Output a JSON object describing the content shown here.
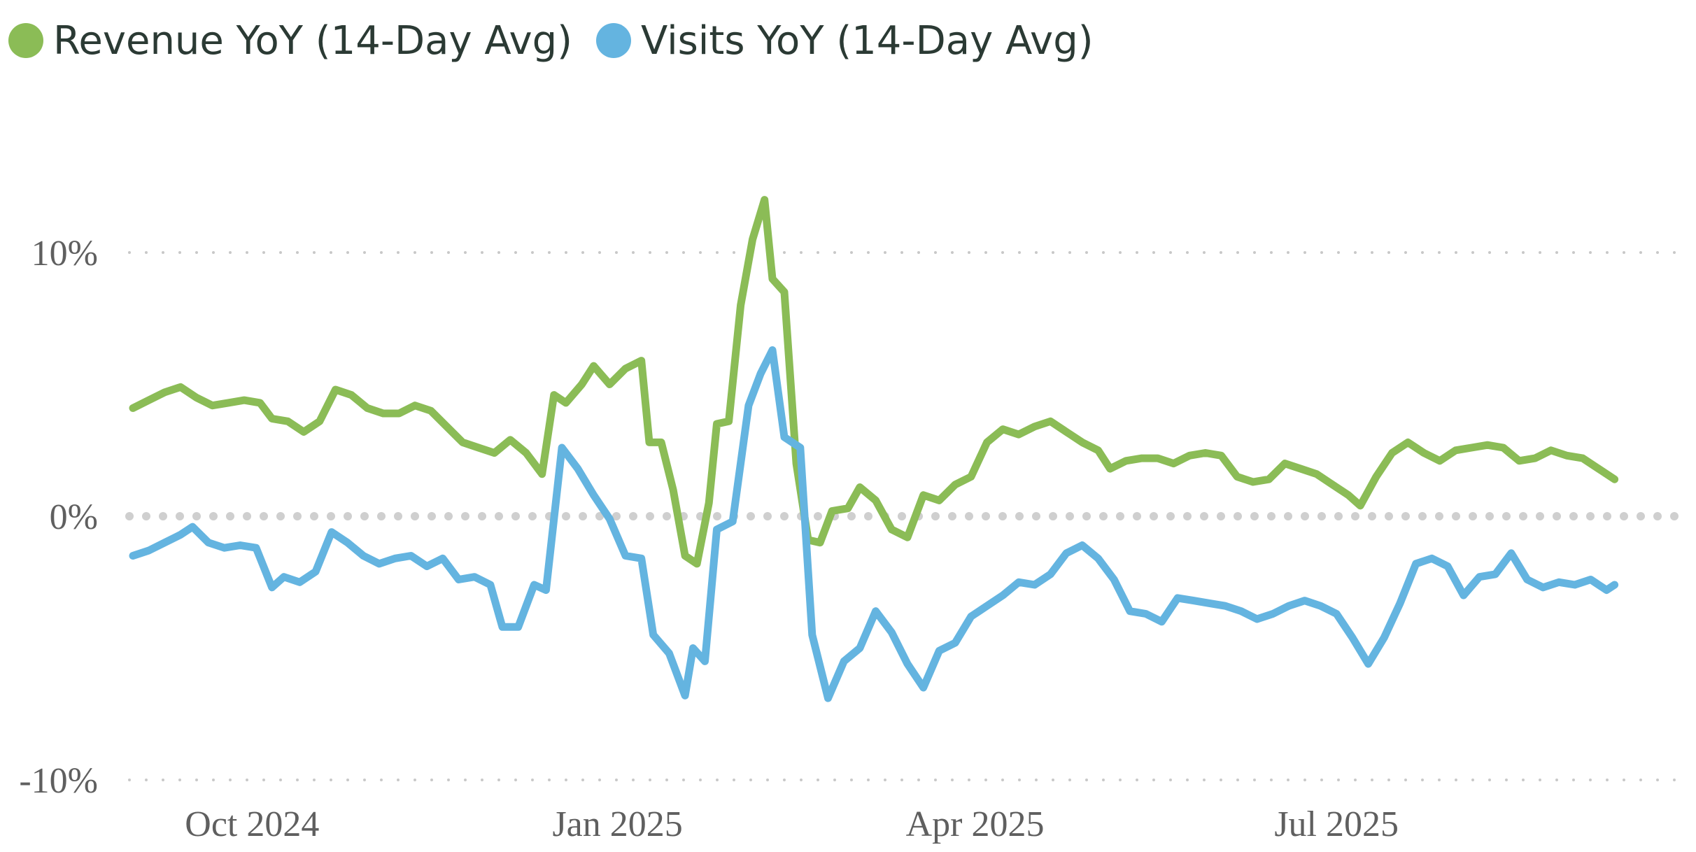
{
  "chart_data": {
    "type": "line",
    "title": "",
    "xlabel": "",
    "ylabel": "",
    "ylim": [
      -10,
      10
    ],
    "xlim": [
      "2024-09-01",
      "2025-09-20"
    ],
    "legend_position": "top-left",
    "grid": "dotted horizontal",
    "x_ticks": [
      {
        "date": "2024-10-01",
        "label": "Oct 2024"
      },
      {
        "date": "2025-01-01",
        "label": "Jan 2025"
      },
      {
        "date": "2025-04-01",
        "label": "Apr 2025"
      },
      {
        "date": "2025-07-01",
        "label": "Jul 2025"
      }
    ],
    "y_ticks": [
      {
        "value": 10,
        "label": "10%"
      },
      {
        "value": 0,
        "label": "0%"
      },
      {
        "value": -10,
        "label": "-10%"
      }
    ],
    "series": [
      {
        "name": "Revenue YoY (14-Day Avg)",
        "color": "#8bbc56",
        "points": [
          [
            "2024-09-01",
            4.1
          ],
          [
            "2024-09-05",
            4.4
          ],
          [
            "2024-09-09",
            4.7
          ],
          [
            "2024-09-13",
            4.9
          ],
          [
            "2024-09-17",
            4.5
          ],
          [
            "2024-09-21",
            4.2
          ],
          [
            "2024-09-25",
            4.3
          ],
          [
            "2024-09-29",
            4.4
          ],
          [
            "2024-10-03",
            4.3
          ],
          [
            "2024-10-06",
            3.7
          ],
          [
            "2024-10-10",
            3.6
          ],
          [
            "2024-10-14",
            3.2
          ],
          [
            "2024-10-18",
            3.6
          ],
          [
            "2024-10-22",
            4.8
          ],
          [
            "2024-10-26",
            4.6
          ],
          [
            "2024-10-30",
            4.1
          ],
          [
            "2024-11-03",
            3.9
          ],
          [
            "2024-11-07",
            3.9
          ],
          [
            "2024-11-11",
            4.2
          ],
          [
            "2024-11-15",
            4.0
          ],
          [
            "2024-11-19",
            3.4
          ],
          [
            "2024-11-23",
            2.8
          ],
          [
            "2024-11-27",
            2.6
          ],
          [
            "2024-12-01",
            2.4
          ],
          [
            "2024-12-05",
            2.9
          ],
          [
            "2024-12-09",
            2.4
          ],
          [
            "2024-12-13",
            1.6
          ],
          [
            "2024-12-16",
            4.6
          ],
          [
            "2024-12-19",
            4.3
          ],
          [
            "2024-12-23",
            5.0
          ],
          [
            "2024-12-26",
            5.7
          ],
          [
            "2024-12-30",
            5.0
          ],
          [
            "2025-01-03",
            5.6
          ],
          [
            "2025-01-07",
            5.9
          ],
          [
            "2025-01-09",
            2.8
          ],
          [
            "2025-01-12",
            2.8
          ],
          [
            "2025-01-15",
            1.0
          ],
          [
            "2025-01-18",
            -1.5
          ],
          [
            "2025-01-21",
            -1.8
          ],
          [
            "2025-01-24",
            0.5
          ],
          [
            "2025-01-26",
            3.5
          ],
          [
            "2025-01-29",
            3.6
          ],
          [
            "2025-02-01",
            8.0
          ],
          [
            "2025-02-04",
            10.5
          ],
          [
            "2025-02-07",
            12.0
          ],
          [
            "2025-02-09",
            9.0
          ],
          [
            "2025-02-12",
            8.5
          ],
          [
            "2025-02-15",
            2.0
          ],
          [
            "2025-02-18",
            -0.9
          ],
          [
            "2025-02-21",
            -1.0
          ],
          [
            "2025-02-24",
            0.2
          ],
          [
            "2025-02-28",
            0.3
          ],
          [
            "2025-03-03",
            1.1
          ],
          [
            "2025-03-07",
            0.6
          ],
          [
            "2025-03-11",
            -0.5
          ],
          [
            "2025-03-15",
            -0.8
          ],
          [
            "2025-03-19",
            0.8
          ],
          [
            "2025-03-23",
            0.6
          ],
          [
            "2025-03-27",
            1.2
          ],
          [
            "2025-03-31",
            1.5
          ],
          [
            "2025-04-04",
            2.8
          ],
          [
            "2025-04-08",
            3.3
          ],
          [
            "2025-04-12",
            3.1
          ],
          [
            "2025-04-16",
            3.4
          ],
          [
            "2025-04-20",
            3.6
          ],
          [
            "2025-04-24",
            3.2
          ],
          [
            "2025-04-28",
            2.8
          ],
          [
            "2025-05-02",
            2.5
          ],
          [
            "2025-05-05",
            1.8
          ],
          [
            "2025-05-09",
            2.1
          ],
          [
            "2025-05-13",
            2.2
          ],
          [
            "2025-05-17",
            2.2
          ],
          [
            "2025-05-21",
            2.0
          ],
          [
            "2025-05-25",
            2.3
          ],
          [
            "2025-05-29",
            2.4
          ],
          [
            "2025-06-02",
            2.3
          ],
          [
            "2025-06-06",
            1.5
          ],
          [
            "2025-06-10",
            1.3
          ],
          [
            "2025-06-14",
            1.4
          ],
          [
            "2025-06-18",
            2.0
          ],
          [
            "2025-06-22",
            1.8
          ],
          [
            "2025-06-26",
            1.6
          ],
          [
            "2025-06-30",
            1.2
          ],
          [
            "2025-07-04",
            0.8
          ],
          [
            "2025-07-07",
            0.4
          ],
          [
            "2025-07-11",
            1.5
          ],
          [
            "2025-07-15",
            2.4
          ],
          [
            "2025-07-19",
            2.8
          ],
          [
            "2025-07-23",
            2.4
          ],
          [
            "2025-07-27",
            2.1
          ],
          [
            "2025-07-31",
            2.5
          ],
          [
            "2025-08-04",
            2.6
          ],
          [
            "2025-08-08",
            2.7
          ],
          [
            "2025-08-12",
            2.6
          ],
          [
            "2025-08-16",
            2.1
          ],
          [
            "2025-08-20",
            2.2
          ],
          [
            "2025-08-24",
            2.5
          ],
          [
            "2025-08-28",
            2.3
          ],
          [
            "2025-09-01",
            2.2
          ],
          [
            "2025-09-05",
            1.8
          ],
          [
            "2025-09-09",
            1.4
          ]
        ]
      },
      {
        "name": "Visits YoY (14-Day Avg)",
        "color": "#64b4e0",
        "points": [
          [
            "2024-09-01",
            -1.5
          ],
          [
            "2024-09-05",
            -1.3
          ],
          [
            "2024-09-09",
            -1.0
          ],
          [
            "2024-09-13",
            -0.7
          ],
          [
            "2024-09-16",
            -0.4
          ],
          [
            "2024-09-20",
            -1.0
          ],
          [
            "2024-09-24",
            -1.2
          ],
          [
            "2024-09-28",
            -1.1
          ],
          [
            "2024-10-02",
            -1.2
          ],
          [
            "2024-10-06",
            -2.7
          ],
          [
            "2024-10-09",
            -2.3
          ],
          [
            "2024-10-13",
            -2.5
          ],
          [
            "2024-10-17",
            -2.1
          ],
          [
            "2024-10-21",
            -0.6
          ],
          [
            "2024-10-25",
            -1.0
          ],
          [
            "2024-10-29",
            -1.5
          ],
          [
            "2024-11-02",
            -1.8
          ],
          [
            "2024-11-06",
            -1.6
          ],
          [
            "2024-11-10",
            -1.5
          ],
          [
            "2024-11-14",
            -1.9
          ],
          [
            "2024-11-18",
            -1.6
          ],
          [
            "2024-11-22",
            -2.4
          ],
          [
            "2024-11-26",
            -2.3
          ],
          [
            "2024-11-30",
            -2.6
          ],
          [
            "2024-12-03",
            -4.2
          ],
          [
            "2024-12-07",
            -4.2
          ],
          [
            "2024-12-11",
            -2.6
          ],
          [
            "2024-12-14",
            -2.8
          ],
          [
            "2024-12-18",
            2.6
          ],
          [
            "2024-12-22",
            1.8
          ],
          [
            "2024-12-26",
            0.8
          ],
          [
            "2024-12-30",
            -0.1
          ],
          [
            "2025-01-03",
            -1.5
          ],
          [
            "2025-01-07",
            -1.6
          ],
          [
            "2025-01-10",
            -4.5
          ],
          [
            "2025-01-14",
            -5.2
          ],
          [
            "2025-01-18",
            -6.8
          ],
          [
            "2025-01-20",
            -5.0
          ],
          [
            "2025-01-23",
            -5.5
          ],
          [
            "2025-01-26",
            -0.5
          ],
          [
            "2025-01-30",
            -0.2
          ],
          [
            "2025-02-03",
            4.2
          ],
          [
            "2025-02-06",
            5.4
          ],
          [
            "2025-02-09",
            6.3
          ],
          [
            "2025-02-12",
            3.0
          ],
          [
            "2025-02-16",
            2.6
          ],
          [
            "2025-02-19",
            -4.5
          ],
          [
            "2025-02-23",
            -6.9
          ],
          [
            "2025-02-27",
            -5.5
          ],
          [
            "2025-03-03",
            -5.0
          ],
          [
            "2025-03-07",
            -3.6
          ],
          [
            "2025-03-11",
            -4.4
          ],
          [
            "2025-03-15",
            -5.6
          ],
          [
            "2025-03-19",
            -6.5
          ],
          [
            "2025-03-23",
            -5.1
          ],
          [
            "2025-03-27",
            -4.8
          ],
          [
            "2025-03-31",
            -3.8
          ],
          [
            "2025-04-04",
            -3.4
          ],
          [
            "2025-04-08",
            -3.0
          ],
          [
            "2025-04-12",
            -2.5
          ],
          [
            "2025-04-16",
            -2.6
          ],
          [
            "2025-04-20",
            -2.2
          ],
          [
            "2025-04-24",
            -1.4
          ],
          [
            "2025-04-28",
            -1.1
          ],
          [
            "2025-05-02",
            -1.6
          ],
          [
            "2025-05-06",
            -2.4
          ],
          [
            "2025-05-10",
            -3.6
          ],
          [
            "2025-05-14",
            -3.7
          ],
          [
            "2025-05-18",
            -4.0
          ],
          [
            "2025-05-22",
            -3.1
          ],
          [
            "2025-05-26",
            -3.2
          ],
          [
            "2025-05-30",
            -3.3
          ],
          [
            "2025-06-03",
            -3.4
          ],
          [
            "2025-06-07",
            -3.6
          ],
          [
            "2025-06-11",
            -3.9
          ],
          [
            "2025-06-15",
            -3.7
          ],
          [
            "2025-06-19",
            -3.4
          ],
          [
            "2025-06-23",
            -3.2
          ],
          [
            "2025-06-27",
            -3.4
          ],
          [
            "2025-07-01",
            -3.7
          ],
          [
            "2025-07-05",
            -4.6
          ],
          [
            "2025-07-09",
            -5.6
          ],
          [
            "2025-07-13",
            -4.6
          ],
          [
            "2025-07-17",
            -3.3
          ],
          [
            "2025-07-21",
            -1.8
          ],
          [
            "2025-07-25",
            -1.6
          ],
          [
            "2025-07-29",
            -1.9
          ],
          [
            "2025-08-02",
            -3.0
          ],
          [
            "2025-08-06",
            -2.3
          ],
          [
            "2025-08-10",
            -2.2
          ],
          [
            "2025-08-14",
            -1.4
          ],
          [
            "2025-08-18",
            -2.4
          ],
          [
            "2025-08-22",
            -2.7
          ],
          [
            "2025-08-26",
            -2.5
          ],
          [
            "2025-08-30",
            -2.6
          ],
          [
            "2025-09-03",
            -2.4
          ],
          [
            "2025-09-07",
            -2.8
          ],
          [
            "2025-09-09",
            -2.6
          ]
        ]
      }
    ]
  }
}
